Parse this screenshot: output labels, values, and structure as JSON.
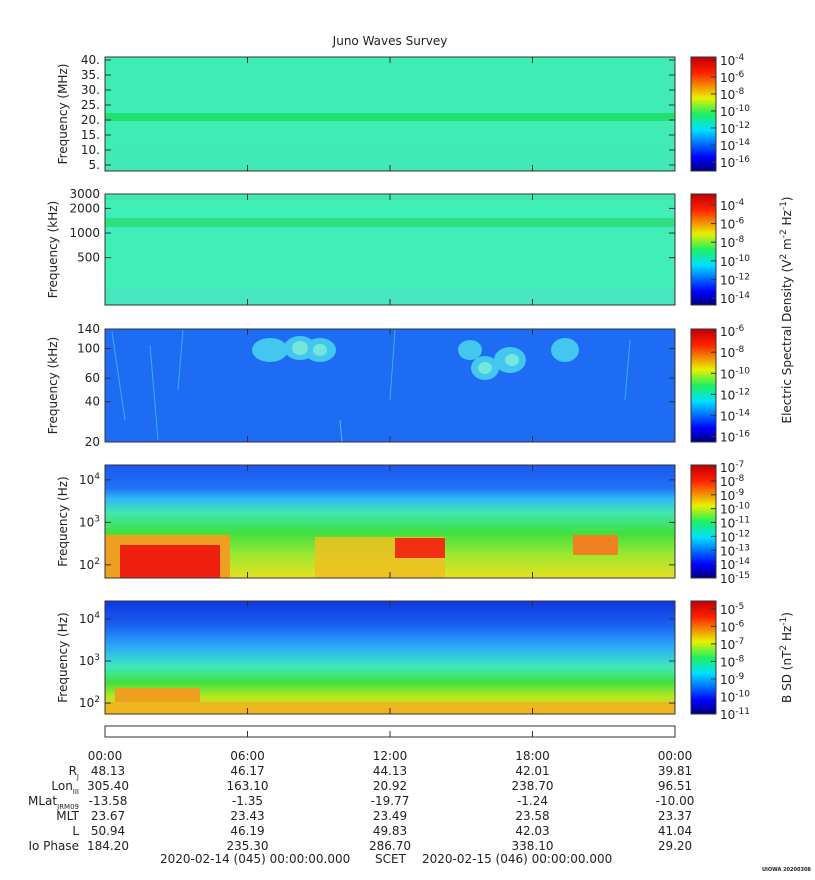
{
  "chart_data": [
    {
      "type": "spectrogram",
      "title": "Juno Waves Survey",
      "y_label": "Frequency (MHz)",
      "log": false,
      "ylim": [
        3,
        41
      ],
      "yticks": [
        {
          "value": 5,
          "label": "5."
        },
        {
          "value": 10,
          "label": "10."
        },
        {
          "value": 15,
          "label": "15."
        },
        {
          "value": 20,
          "label": "20."
        },
        {
          "value": 25,
          "label": "25."
        },
        {
          "value": 30,
          "label": "30."
        },
        {
          "value": 35,
          "label": "35."
        },
        {
          "value": 40,
          "label": "40."
        }
      ],
      "clim": [
        8.7e-18,
        0.00022
      ],
      "cticks": [
        {
          "value": 0.0001,
          "label": "10",
          "exponent": "-4"
        },
        {
          "value": 1e-06,
          "label": "10",
          "exponent": "-6"
        },
        {
          "value": 1e-08,
          "label": "10",
          "exponent": "-8"
        },
        {
          "value": 1e-10,
          "label": "10",
          "exponent": "-10"
        },
        {
          "value": 1e-12,
          "label": "10",
          "exponent": "-12"
        },
        {
          "value": 1e-14,
          "label": "10",
          "exponent": "-14"
        },
        {
          "value": 1e-16,
          "label": "10",
          "exponent": "-16"
        }
      ]
    },
    {
      "type": "spectrogram",
      "y_label": "Frequency (kHz)",
      "log": true,
      "ylim": [
        132,
        3000
      ],
      "yticks": [
        500,
        1000,
        2000,
        3000
      ],
      "clim": [
        1.8e-15,
        0.0015
      ],
      "cticks": [
        {
          "value": 0.0001,
          "label": "10",
          "exponent": "-4"
        },
        {
          "value": 1e-06,
          "label": "10",
          "exponent": "-6"
        },
        {
          "value": 1e-08,
          "label": "10",
          "exponent": "-8"
        },
        {
          "value": 1e-10,
          "label": "10",
          "exponent": "-10"
        },
        {
          "value": 1e-12,
          "label": "10",
          "exponent": "-12"
        },
        {
          "value": 1e-14,
          "label": "10",
          "exponent": "-14"
        }
      ],
      "colorbar_label": [
        "Electric Spectral Density (V",
        "2",
        " m",
        "-2",
        " Hz",
        "-1",
        ")"
      ]
    },
    {
      "type": "spectrogram",
      "y_label": "Frequency (kHz)",
      "log": true,
      "ylim": [
        20,
        140
      ],
      "yticks": [
        20,
        40,
        60,
        100,
        140
      ],
      "clim": [
        3e-17,
        1.6e-06
      ],
      "cticks": [
        {
          "value": 1e-06,
          "label": "10",
          "exponent": "-6"
        },
        {
          "value": 1e-08,
          "label": "10",
          "exponent": "-8"
        },
        {
          "value": 1e-10,
          "label": "10",
          "exponent": "-10"
        },
        {
          "value": 1e-12,
          "label": "10",
          "exponent": "-12"
        },
        {
          "value": 1e-14,
          "label": "10",
          "exponent": "-14"
        },
        {
          "value": 1e-16,
          "label": "10",
          "exponent": "-16"
        }
      ]
    },
    {
      "type": "spectrogram",
      "y_label": "Frequency (Hz)",
      "log": true,
      "ylim": [
        49,
        22400
      ],
      "yticks": [
        {
          "value": 100,
          "label": "10",
          "exponent": "2"
        },
        {
          "value": 1000,
          "label": "10",
          "exponent": "3"
        },
        {
          "value": 10000,
          "label": "10",
          "exponent": "4"
        }
      ],
      "clim": [
        1e-15,
        1.4e-07
      ],
      "cticks": [
        {
          "value": 1e-07,
          "label": "10",
          "exponent": "-7"
        },
        {
          "value": 1e-08,
          "label": "10",
          "exponent": "-8"
        },
        {
          "value": 1e-09,
          "label": "10",
          "exponent": "-9"
        },
        {
          "value": 1e-10,
          "label": "10",
          "exponent": "-10"
        },
        {
          "value": 1e-11,
          "label": "10",
          "exponent": "-11"
        },
        {
          "value": 1e-12,
          "label": "10",
          "exponent": "-12"
        },
        {
          "value": 1e-13,
          "label": "10",
          "exponent": "-13"
        },
        {
          "value": 1e-14,
          "label": "10",
          "exponent": "-14"
        },
        {
          "value": 1e-15,
          "label": "10",
          "exponent": "-15"
        }
      ]
    },
    {
      "type": "spectrogram",
      "y_label": "Frequency (Hz)",
      "log": true,
      "ylim": [
        55,
        26800
      ],
      "yticks": [
        {
          "value": 100,
          "label": "10",
          "exponent": "2"
        },
        {
          "value": 1000,
          "label": "10",
          "exponent": "3"
        },
        {
          "value": 10000,
          "label": "10",
          "exponent": "4"
        }
      ],
      "clim": [
        1e-11,
        2.8e-05
      ],
      "cticks": [
        {
          "value": 1e-05,
          "label": "10",
          "exponent": "-5"
        },
        {
          "value": 1e-06,
          "label": "10",
          "exponent": "-6"
        },
        {
          "value": 1e-07,
          "label": "10",
          "exponent": "-7"
        },
        {
          "value": 1e-08,
          "label": "10",
          "exponent": "-8"
        },
        {
          "value": 1e-09,
          "label": "10",
          "exponent": "-9"
        },
        {
          "value": 1e-10,
          "label": "10",
          "exponent": "-10"
        },
        {
          "value": 1e-11,
          "label": "10",
          "exponent": "-11"
        }
      ],
      "colorbar_label": [
        "B SD (nT",
        "2",
        " Hz",
        "-1",
        ")"
      ]
    }
  ],
  "time_axis": {
    "xlim": [
      0,
      24
    ],
    "xticks": [
      {
        "value": 0,
        "label": "00:00"
      },
      {
        "value": 6,
        "label": "06:00"
      },
      {
        "value": 12,
        "label": "12:00"
      },
      {
        "value": 18,
        "label": "18:00"
      },
      {
        "value": 24,
        "label": "00:00"
      }
    ]
  },
  "ephemeris": {
    "rows": [
      {
        "label": "R",
        "sub": "J",
        "values": [
          "48.13",
          "46.17",
          "44.13",
          "42.01",
          "39.81"
        ]
      },
      {
        "label": "Lon",
        "sub": "III",
        "values": [
          "305.40",
          "163.10",
          "20.92",
          "238.70",
          "96.51"
        ]
      },
      {
        "label": "MLat",
        "sub": "JRM09",
        "values": [
          "-13.58",
          "-1.35",
          "-19.77",
          "-1.24",
          "-10.00"
        ]
      },
      {
        "label": "MLT",
        "values": [
          "23.67",
          "23.43",
          "23.49",
          "23.58",
          "23.37"
        ]
      },
      {
        "label": "L",
        "values": [
          "50.94",
          "46.19",
          "49.83",
          "42.03",
          "41.04"
        ]
      },
      {
        "label": "Io Phase",
        "values": [
          "184.20",
          "235.30",
          "286.70",
          "338.10",
          "29.20"
        ]
      }
    ]
  },
  "footer": {
    "start": "2020-02-14 (045) 00:00:00.000",
    "scet": "SCET",
    "end": "2020-02-15 (046) 00:00:00.000",
    "stamp": "UIOWA 20200308"
  }
}
